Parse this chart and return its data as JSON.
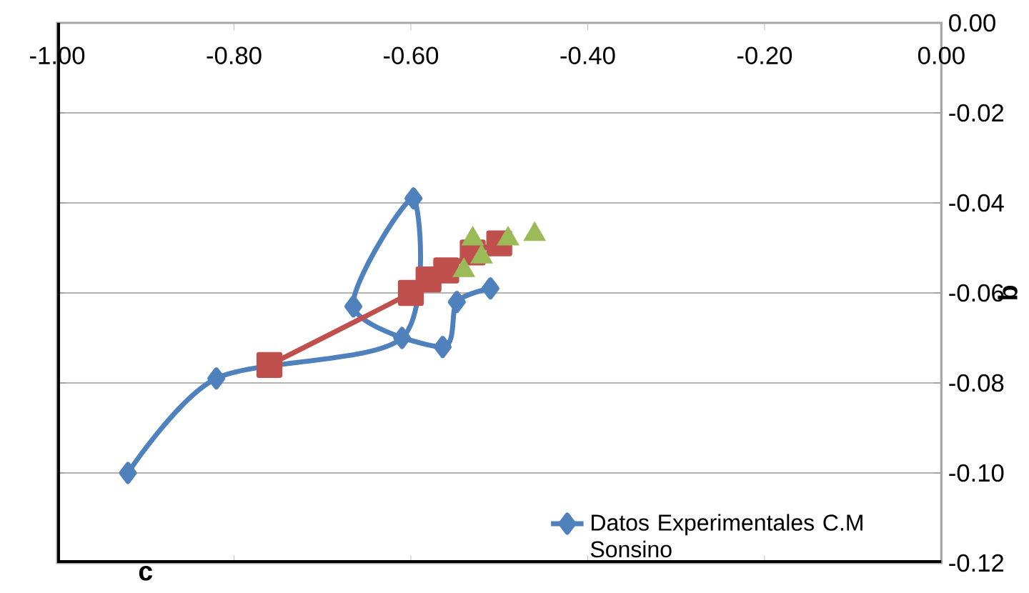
{
  "chart_data": {
    "type": "line",
    "xlabel": "c",
    "ylabel": "b",
    "xlim": [
      -1.0,
      0.0
    ],
    "ylim": [
      -0.12,
      0.0
    ],
    "xticks": [
      {
        "value": -1.0,
        "label": "-1.00"
      },
      {
        "value": -0.8,
        "label": "-0.80"
      },
      {
        "value": -0.6,
        "label": "-0.60"
      },
      {
        "value": -0.4,
        "label": "-0.40"
      },
      {
        "value": -0.2,
        "label": "-0.20"
      },
      {
        "value": 0.0,
        "label": "0.00"
      }
    ],
    "yticks": [
      {
        "value": 0.0,
        "label": "0.00"
      },
      {
        "value": -0.02,
        "label": "-0.02"
      },
      {
        "value": -0.04,
        "label": "-0.04"
      },
      {
        "value": -0.06,
        "label": "-0.06"
      },
      {
        "value": -0.08,
        "label": "-0.08"
      },
      {
        "value": -0.1,
        "label": "-0.10"
      },
      {
        "value": -0.12,
        "label": "-0.12"
      }
    ],
    "grid": "y",
    "legend": "bottom right",
    "series": [
      {
        "name": "Datos Experimentales C.M Sonsino",
        "color": "#4f81bd",
        "marker": "diamond",
        "x": [
          -0.92,
          -0.82,
          -0.61,
          -0.597,
          -0.665,
          -0.564,
          -0.548,
          -0.51
        ],
        "values": [
          -0.1,
          -0.079,
          -0.07,
          -0.039,
          -0.063,
          -0.072,
          -0.062,
          -0.059
        ]
      },
      {
        "color": "#c0504d",
        "marker": "square",
        "x": [
          -0.76,
          -0.6,
          -0.58,
          -0.56,
          -0.53,
          -0.5
        ],
        "values": [
          -0.076,
          -0.06,
          -0.057,
          -0.055,
          -0.051,
          -0.049
        ]
      },
      {
        "type": "scatter",
        "color": "#9bbb59",
        "marker": "triangle",
        "x": [
          -0.54,
          -0.53,
          -0.52,
          -0.49,
          -0.46
        ],
        "values": [
          -0.055,
          -0.048,
          -0.052,
          -0.048,
          -0.047
        ]
      }
    ]
  }
}
